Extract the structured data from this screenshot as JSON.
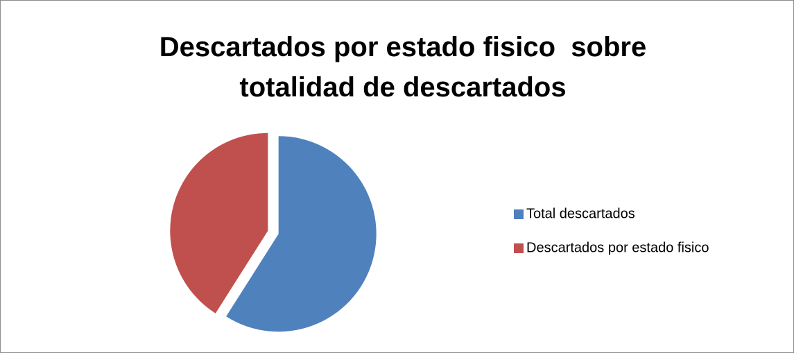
{
  "chart_data": {
    "type": "pie",
    "title": "Descartados por estado fisico  sobre totalidad de descartados",
    "categories": [
      "Total descartados",
      "Descartados por estado fisico"
    ],
    "values": [
      59,
      41
    ],
    "colors": [
      "#4f81bd",
      "#c0504d"
    ],
    "legend": "right"
  }
}
